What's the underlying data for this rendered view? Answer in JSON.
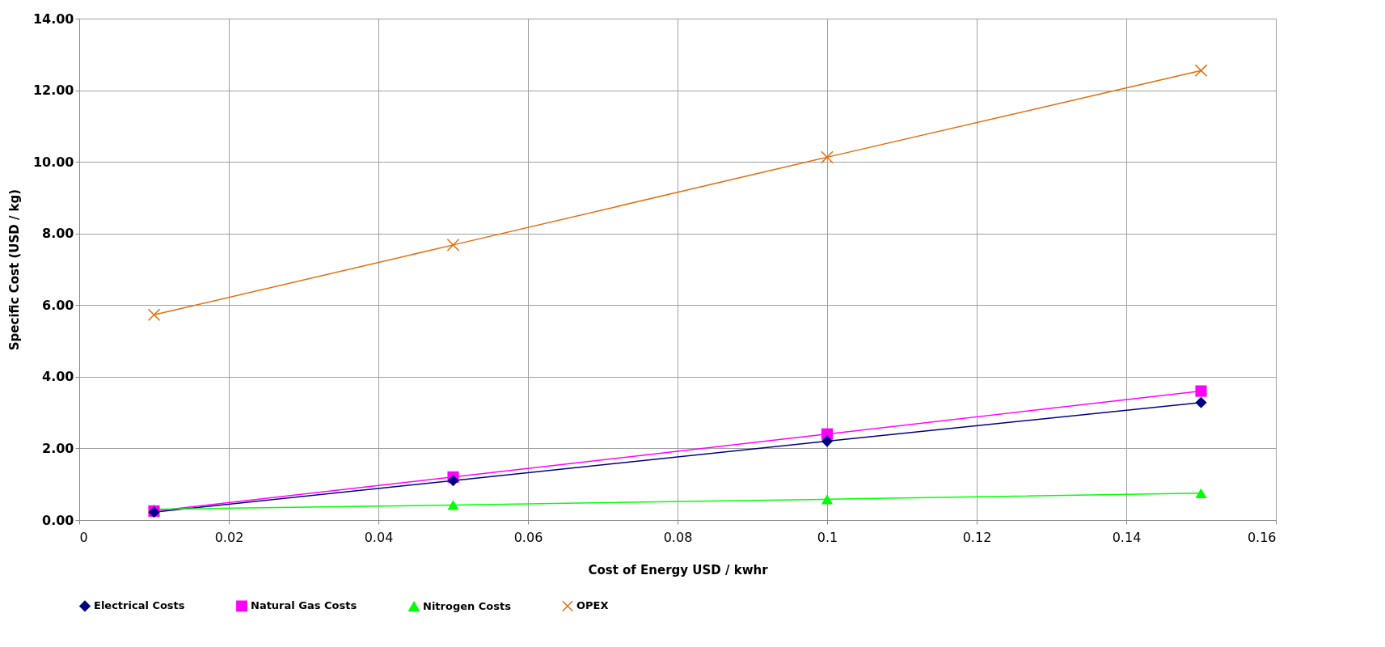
{
  "chart_data": {
    "type": "line",
    "xlabel": "Cost of Energy USD / kwhr",
    "ylabel": "Specific Cost (USD / kg)",
    "x": [
      0.01,
      0.05,
      0.1,
      0.15
    ],
    "series": [
      {
        "name": "Electrical Costs",
        "color": "#000080",
        "marker": "diamond",
        "values": [
          0.22,
          1.1,
          2.2,
          3.28
        ]
      },
      {
        "name": "Natural Gas Costs",
        "color": "#ff00ff",
        "marker": "square",
        "values": [
          0.25,
          1.2,
          2.4,
          3.6
        ]
      },
      {
        "name": "Nitrogen Costs",
        "color": "#00ff00",
        "marker": "triangle",
        "values": [
          0.3,
          0.42,
          0.58,
          0.75
        ]
      },
      {
        "name": "OPEX",
        "color": "#e46c0a",
        "marker": "cross",
        "values": [
          5.73,
          7.68,
          10.13,
          12.55
        ]
      }
    ],
    "xlim": [
      0,
      0.16
    ],
    "xticks": [
      0,
      0.02,
      0.04,
      0.06,
      0.08,
      0.1,
      0.12,
      0.14,
      0.16
    ],
    "ylim": [
      0,
      14
    ],
    "yticks": [
      {
        "value": 0,
        "label": "0.00"
      },
      {
        "value": 2,
        "label": "2.00"
      },
      {
        "value": 4,
        "label": "4.00"
      },
      {
        "value": 6,
        "label": "6.00"
      },
      {
        "value": 8,
        "label": "8.00"
      },
      {
        "value": 10,
        "label": "10.00"
      },
      {
        "value": 12,
        "label": "12.00"
      },
      {
        "value": 14,
        "label": "14.00"
      }
    ],
    "grid": true,
    "legend": "bottom",
    "line_style": "solid"
  }
}
